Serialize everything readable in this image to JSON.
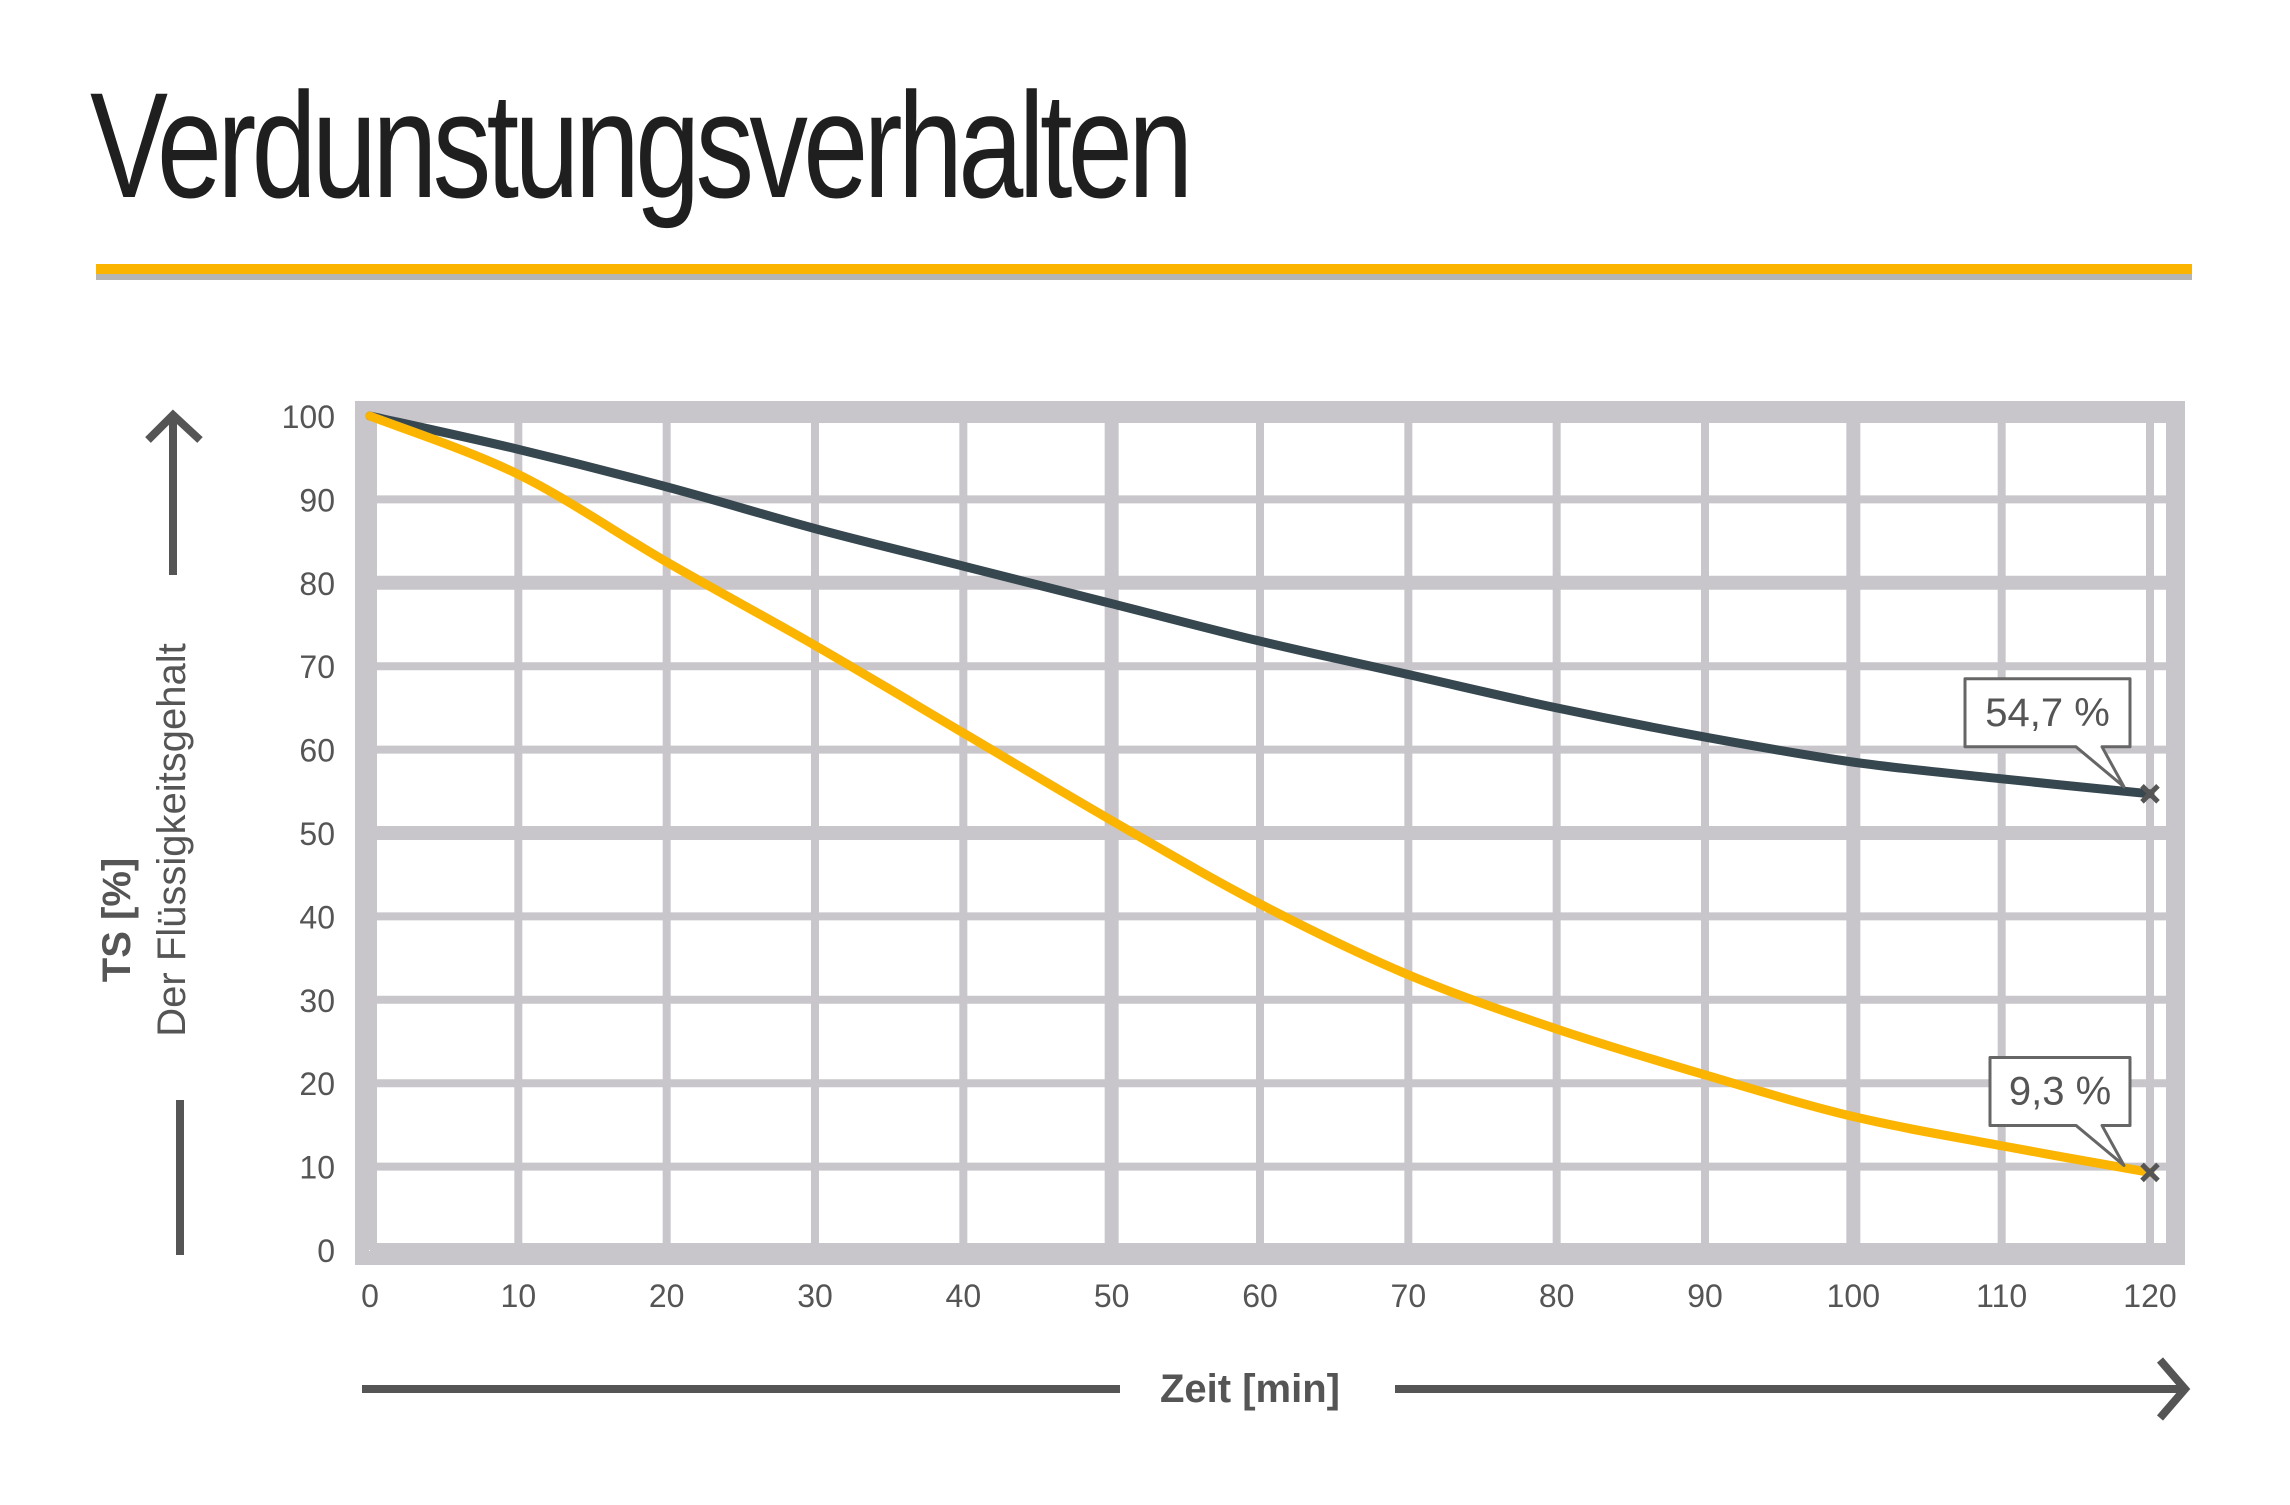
{
  "title": "Verdunstungsverhalten",
  "colors": {
    "accent": "#fbb400",
    "series_dark": "#37474f",
    "series_yellow": "#fbb400",
    "grid": "#c8c6ca",
    "text": "#555555",
    "plot_bg": "#ffffff"
  },
  "chart_data": {
    "type": "line",
    "title": "Verdunstungsverhalten",
    "xlabel": "Zeit [min]",
    "ylabel": "TS [%]",
    "ylabel_secondary": "Der Flüssigkeitsgehalt",
    "xlim": [
      0,
      120
    ],
    "ylim": [
      0,
      100
    ],
    "grid": true,
    "x": [
      0,
      10,
      20,
      30,
      40,
      50,
      60,
      70,
      80,
      90,
      100,
      110,
      120
    ],
    "x_ticks": [
      "0",
      "10",
      "20",
      "30",
      "40",
      "50",
      "60",
      "70",
      "80",
      "90",
      "100",
      "110",
      "120"
    ],
    "y_ticks": [
      "0",
      "10",
      "20",
      "30",
      "40",
      "50",
      "60",
      "70",
      "80",
      "90",
      "100"
    ],
    "series": [
      {
        "name": "dark",
        "color": "#37474f",
        "values": [
          100,
          96,
          91.5,
          86.5,
          82,
          77.5,
          73,
          69,
          65,
          61.5,
          58.5,
          56.5,
          54.7
        ]
      },
      {
        "name": "yellow",
        "color": "#fbb400",
        "values": [
          100,
          93,
          82.5,
          72.5,
          62,
          51.5,
          41.5,
          33,
          26.5,
          21,
          16,
          12.5,
          9.3
        ]
      }
    ],
    "annotations": [
      {
        "series": "dark",
        "x": 120,
        "y": 54.7,
        "label": "54,7 %"
      },
      {
        "series": "yellow",
        "x": 120,
        "y": 9.3,
        "label": "9,3 %"
      }
    ]
  }
}
